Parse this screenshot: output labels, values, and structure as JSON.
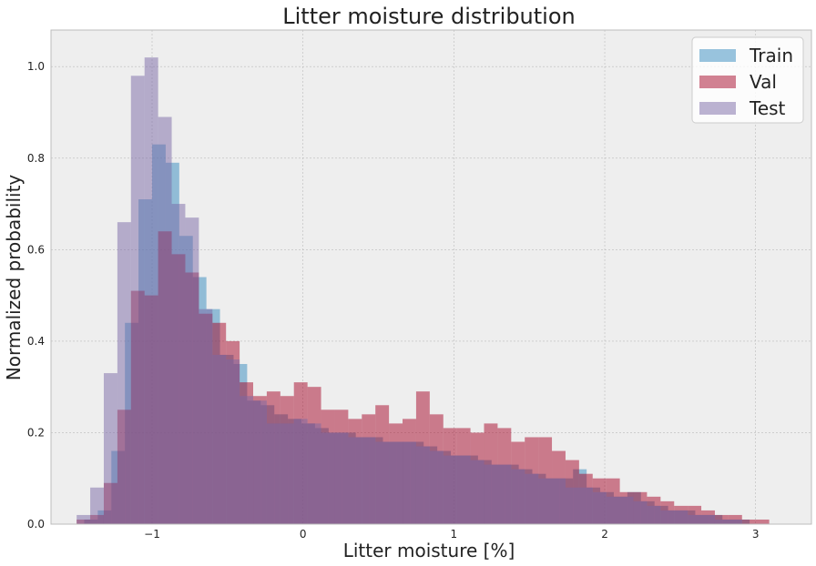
{
  "chart_data": {
    "type": "histogram",
    "title": "Litter moisture distribution",
    "xlabel": "Litter moisture [%]",
    "ylabel": "Normalized probability",
    "xlim": [
      -1.67,
      3.37
    ],
    "ylim": [
      0,
      1.08
    ],
    "xticks": [
      -1,
      0,
      1,
      2,
      3
    ],
    "yticks": [
      0.0,
      0.2,
      0.4,
      0.6,
      0.8,
      1.0
    ],
    "xtick_labels": [
      "−1",
      "0",
      "1",
      "2",
      "3"
    ],
    "ytick_labels": [
      "0.0",
      "0.2",
      "0.4",
      "0.6",
      "0.8",
      "1.0"
    ],
    "grid": true,
    "legend_position": "top-right",
    "series": [
      {
        "name": "Train",
        "color": "#348ABD",
        "opacity": 0.5,
        "bins": [
          [
            -1.45,
            -1.36,
            0.01
          ],
          [
            -1.36,
            -1.27,
            0.03
          ],
          [
            -1.27,
            -1.18,
            0.16
          ],
          [
            -1.18,
            -1.09,
            0.44
          ],
          [
            -1.09,
            -1.0,
            0.71
          ],
          [
            -1.0,
            -0.91,
            0.83
          ],
          [
            -0.91,
            -0.82,
            0.79
          ],
          [
            -0.82,
            -0.73,
            0.63
          ],
          [
            -0.73,
            -0.64,
            0.54
          ],
          [
            -0.64,
            -0.55,
            0.47
          ],
          [
            -0.55,
            -0.46,
            0.37
          ],
          [
            -0.46,
            -0.37,
            0.35
          ],
          [
            -0.37,
            -0.28,
            0.27
          ],
          [
            -0.28,
            -0.19,
            0.26
          ],
          [
            -0.19,
            -0.1,
            0.24
          ],
          [
            -0.1,
            -0.01,
            0.23
          ],
          [
            -0.01,
            0.08,
            0.22
          ],
          [
            0.08,
            0.17,
            0.21
          ],
          [
            0.17,
            0.26,
            0.2
          ],
          [
            0.26,
            0.35,
            0.2
          ],
          [
            0.35,
            0.44,
            0.19
          ],
          [
            0.44,
            0.53,
            0.19
          ],
          [
            0.53,
            0.62,
            0.18
          ],
          [
            0.62,
            0.71,
            0.18
          ],
          [
            0.71,
            0.8,
            0.18
          ],
          [
            0.8,
            0.89,
            0.17
          ],
          [
            0.89,
            0.98,
            0.16
          ],
          [
            0.98,
            1.07,
            0.15
          ],
          [
            1.07,
            1.16,
            0.15
          ],
          [
            1.16,
            1.25,
            0.14
          ],
          [
            1.25,
            1.34,
            0.13
          ],
          [
            1.34,
            1.43,
            0.13
          ],
          [
            1.43,
            1.52,
            0.12
          ],
          [
            1.52,
            1.61,
            0.11
          ],
          [
            1.61,
            1.7,
            0.1
          ],
          [
            1.7,
            1.79,
            0.1
          ],
          [
            1.79,
            1.88,
            0.12
          ],
          [
            1.88,
            1.97,
            0.08
          ],
          [
            1.97,
            2.06,
            0.07
          ],
          [
            2.06,
            2.15,
            0.06
          ],
          [
            2.15,
            2.24,
            0.07
          ],
          [
            2.24,
            2.33,
            0.05
          ],
          [
            2.33,
            2.42,
            0.04
          ],
          [
            2.42,
            2.51,
            0.03
          ],
          [
            2.51,
            2.6,
            0.03
          ],
          [
            2.6,
            2.69,
            0.02
          ],
          [
            2.69,
            2.78,
            0.02
          ],
          [
            2.78,
            2.87,
            0.01
          ],
          [
            2.87,
            2.96,
            0.01
          ]
        ]
      },
      {
        "name": "Val",
        "color": "#A60628",
        "opacity": 0.5,
        "bins": [
          [
            -1.5,
            -1.41,
            0.01
          ],
          [
            -1.41,
            -1.32,
            0.02
          ],
          [
            -1.32,
            -1.23,
            0.09
          ],
          [
            -1.23,
            -1.14,
            0.25
          ],
          [
            -1.14,
            -1.05,
            0.51
          ],
          [
            -1.05,
            -0.96,
            0.5
          ],
          [
            -0.96,
            -0.87,
            0.64
          ],
          [
            -0.87,
            -0.78,
            0.59
          ],
          [
            -0.78,
            -0.69,
            0.55
          ],
          [
            -0.69,
            -0.6,
            0.46
          ],
          [
            -0.6,
            -0.51,
            0.44
          ],
          [
            -0.51,
            -0.42,
            0.4
          ],
          [
            -0.42,
            -0.33,
            0.31
          ],
          [
            -0.33,
            -0.24,
            0.28
          ],
          [
            -0.24,
            -0.15,
            0.29
          ],
          [
            -0.15,
            -0.06,
            0.28
          ],
          [
            -0.06,
            0.03,
            0.31
          ],
          [
            0.03,
            0.12,
            0.3
          ],
          [
            0.12,
            0.21,
            0.25
          ],
          [
            0.21,
            0.3,
            0.25
          ],
          [
            0.3,
            0.39,
            0.23
          ],
          [
            0.39,
            0.48,
            0.24
          ],
          [
            0.48,
            0.57,
            0.26
          ],
          [
            0.57,
            0.66,
            0.22
          ],
          [
            0.66,
            0.75,
            0.23
          ],
          [
            0.75,
            0.84,
            0.29
          ],
          [
            0.84,
            0.93,
            0.24
          ],
          [
            0.93,
            1.02,
            0.21
          ],
          [
            1.02,
            1.11,
            0.21
          ],
          [
            1.11,
            1.2,
            0.2
          ],
          [
            1.2,
            1.29,
            0.22
          ],
          [
            1.29,
            1.38,
            0.21
          ],
          [
            1.38,
            1.47,
            0.18
          ],
          [
            1.47,
            1.56,
            0.19
          ],
          [
            1.56,
            1.65,
            0.19
          ],
          [
            1.65,
            1.74,
            0.16
          ],
          [
            1.74,
            1.83,
            0.14
          ],
          [
            1.83,
            1.92,
            0.11
          ],
          [
            1.92,
            2.01,
            0.1
          ],
          [
            2.01,
            2.1,
            0.1
          ],
          [
            2.1,
            2.19,
            0.07
          ],
          [
            2.19,
            2.28,
            0.07
          ],
          [
            2.28,
            2.37,
            0.06
          ],
          [
            2.37,
            2.46,
            0.05
          ],
          [
            2.46,
            2.55,
            0.04
          ],
          [
            2.55,
            2.64,
            0.04
          ],
          [
            2.64,
            2.73,
            0.03
          ],
          [
            2.73,
            2.82,
            0.02
          ],
          [
            2.82,
            2.91,
            0.02
          ],
          [
            2.91,
            3.0,
            0.01
          ],
          [
            3.0,
            3.09,
            0.01
          ]
        ]
      },
      {
        "name": "Test",
        "color": "#7A68A6",
        "opacity": 0.5,
        "bins": [
          [
            -1.5,
            -1.41,
            0.02
          ],
          [
            -1.41,
            -1.32,
            0.08
          ],
          [
            -1.32,
            -1.23,
            0.33
          ],
          [
            -1.23,
            -1.14,
            0.66
          ],
          [
            -1.14,
            -1.05,
            0.98
          ],
          [
            -1.05,
            -0.96,
            1.02
          ],
          [
            -0.96,
            -0.87,
            0.89
          ],
          [
            -0.87,
            -0.78,
            0.7
          ],
          [
            -0.78,
            -0.69,
            0.67
          ],
          [
            -0.69,
            -0.6,
            0.47
          ],
          [
            -0.6,
            -0.51,
            0.37
          ],
          [
            -0.51,
            -0.42,
            0.36
          ],
          [
            -0.42,
            -0.33,
            0.28
          ],
          [
            -0.33,
            -0.24,
            0.27
          ],
          [
            -0.24,
            -0.15,
            0.22
          ],
          [
            -0.15,
            -0.06,
            0.22
          ],
          [
            -0.06,
            0.03,
            0.23
          ],
          [
            0.03,
            0.12,
            0.22
          ],
          [
            0.12,
            0.21,
            0.2
          ],
          [
            0.21,
            0.3,
            0.2
          ],
          [
            0.3,
            0.39,
            0.19
          ],
          [
            0.39,
            0.48,
            0.19
          ],
          [
            0.48,
            0.57,
            0.18
          ],
          [
            0.57,
            0.66,
            0.18
          ],
          [
            0.66,
            0.75,
            0.18
          ],
          [
            0.75,
            0.84,
            0.17
          ],
          [
            0.84,
            0.93,
            0.16
          ],
          [
            0.93,
            1.02,
            0.15
          ],
          [
            1.02,
            1.11,
            0.15
          ],
          [
            1.11,
            1.2,
            0.14
          ],
          [
            1.2,
            1.29,
            0.13
          ],
          [
            1.29,
            1.38,
            0.13
          ],
          [
            1.38,
            1.47,
            0.12
          ],
          [
            1.47,
            1.56,
            0.11
          ],
          [
            1.56,
            1.65,
            0.1
          ],
          [
            1.65,
            1.74,
            0.1
          ],
          [
            1.74,
            1.83,
            0.08
          ],
          [
            1.83,
            1.92,
            0.08
          ],
          [
            1.92,
            2.01,
            0.07
          ],
          [
            2.01,
            2.1,
            0.06
          ],
          [
            2.1,
            2.19,
            0.06
          ],
          [
            2.19,
            2.28,
            0.05
          ],
          [
            2.28,
            2.37,
            0.04
          ],
          [
            2.37,
            2.46,
            0.03
          ],
          [
            2.46,
            2.55,
            0.03
          ],
          [
            2.55,
            2.64,
            0.02
          ],
          [
            2.64,
            2.73,
            0.02
          ],
          [
            2.73,
            2.82,
            0.01
          ],
          [
            2.82,
            2.91,
            0.01
          ]
        ]
      }
    ]
  },
  "style": {
    "plot_background": "#EEEEEE",
    "grid_color": "#BBBBBB",
    "axes_edge_color": "#BCBCBC",
    "legend_background": "#FFFFFF"
  }
}
